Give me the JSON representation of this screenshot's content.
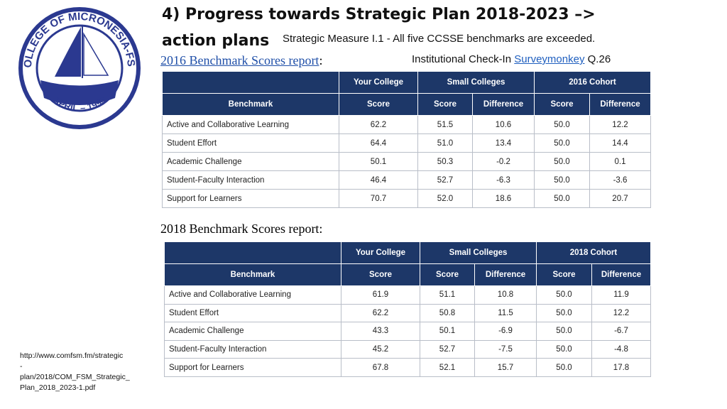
{
  "logo": {
    "ring_text": "COLLEGE OF MICRONESIA-FSM",
    "date_text": "APRIL – 1993"
  },
  "header": {
    "title_line1": "4) Progress towards Strategic Plan 2018-2023 –>",
    "title_line2": "action plans",
    "measure": "Strategic Measure I.1 - All five CCSSE benchmarks are exceeded.",
    "checkin_prefix": "Institutional Check-In",
    "checkin_link": "Surveymonkey",
    "checkin_suffix": "Q.26"
  },
  "tables": [
    {
      "caption": "2016 Benchmark Scores report",
      "caption_colon": ":",
      "groups": [
        "Your College",
        "Small Colleges",
        "2016 Cohort"
      ],
      "columns": [
        "Benchmark",
        "Score",
        "Score",
        "Difference",
        "Score",
        "Difference"
      ],
      "rows": [
        [
          "Active and Collaborative Learning",
          "62.2",
          "51.5",
          "10.6",
          "50.0",
          "12.2"
        ],
        [
          "Student Effort",
          "64.4",
          "51.0",
          "13.4",
          "50.0",
          "14.4"
        ],
        [
          "Academic Challenge",
          "50.1",
          "50.3",
          "-0.2",
          "50.0",
          "0.1"
        ],
        [
          "Student-Faculty Interaction",
          "46.4",
          "52.7",
          "-6.3",
          "50.0",
          "-3.6"
        ],
        [
          "Support for Learners",
          "70.7",
          "52.0",
          "18.6",
          "50.0",
          "20.7"
        ]
      ]
    },
    {
      "caption": "2018 Benchmark Scores report:",
      "groups": [
        "Your College",
        "Small Colleges",
        "2018 Cohort"
      ],
      "columns": [
        "Benchmark",
        "Score",
        "Score",
        "Difference",
        "Score",
        "Difference"
      ],
      "rows": [
        [
          "Active and Collaborative Learning",
          "61.9",
          "51.1",
          "10.8",
          "50.0",
          "11.9"
        ],
        [
          "Student Effort",
          "62.2",
          "50.8",
          "11.5",
          "50.0",
          "12.2"
        ],
        [
          "Academic Challenge",
          "43.3",
          "50.1",
          "-6.9",
          "50.0",
          "-6.7"
        ],
        [
          "Student-Faculty Interaction",
          "45.2",
          "52.7",
          "-7.5",
          "50.0",
          "-4.8"
        ],
        [
          "Support for Learners",
          "67.8",
          "52.1",
          "15.7",
          "50.0",
          "17.8"
        ]
      ]
    }
  ],
  "footer": {
    "url_lines": [
      "http://www.comfsm.fm/strategic",
      "-",
      "plan/2018/COM_FSM_Strategic_",
      "Plan_2018_2023-1.pdf"
    ]
  }
}
